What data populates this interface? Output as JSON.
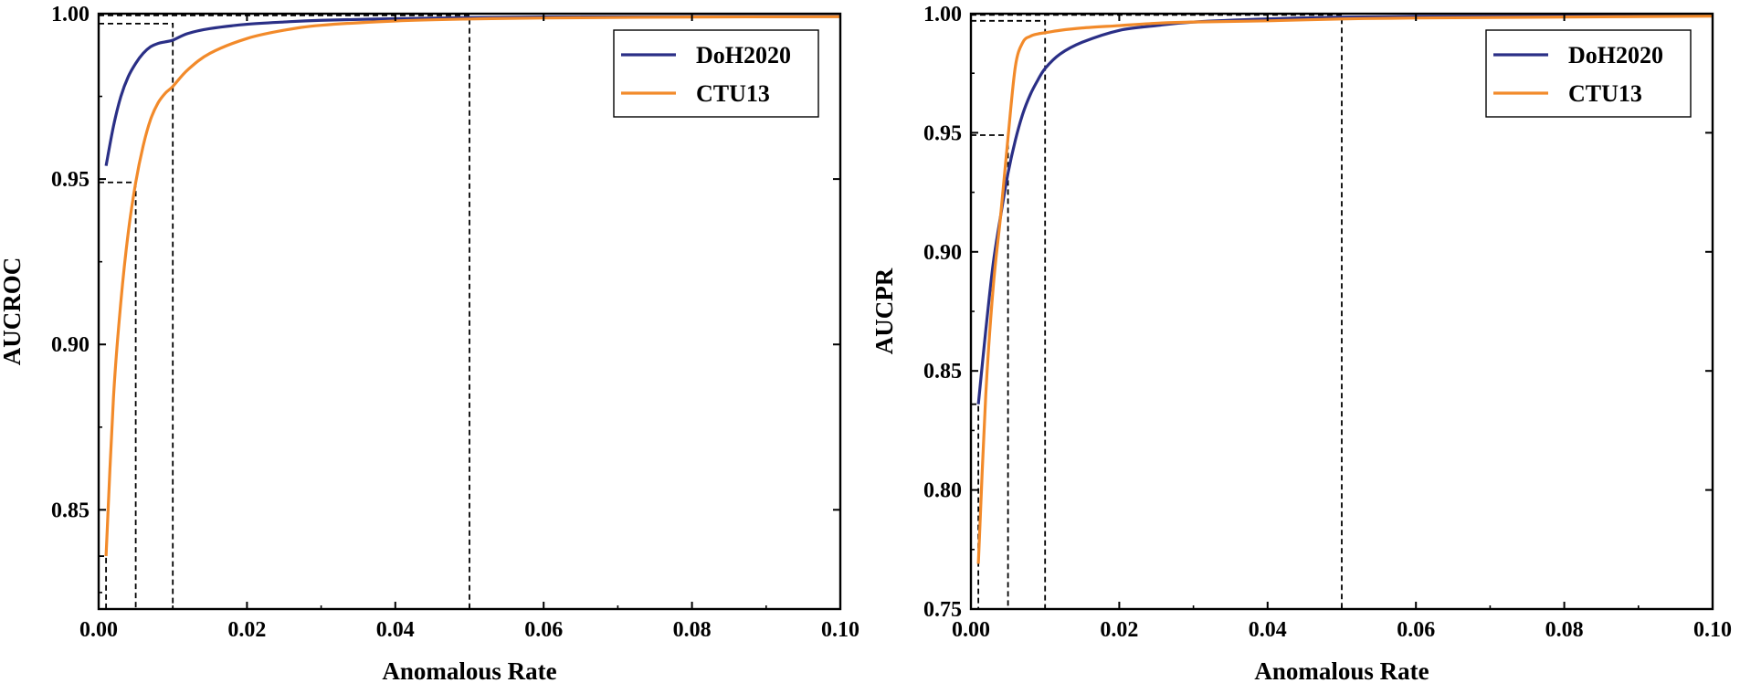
{
  "chart_data": [
    {
      "type": "line",
      "title": "",
      "xlabel": "Anomalous Rate",
      "ylabel": "AUCROC",
      "xlim": [
        0,
        0.1
      ],
      "ylim": [
        0.82,
        1.0
      ],
      "xticks": [
        0.0,
        0.02,
        0.04,
        0.06,
        0.08,
        0.1
      ],
      "xtick_labels": [
        "0.00",
        "0.02",
        "0.04",
        "0.06",
        "0.08",
        "0.10"
      ],
      "yticks": [
        0.85,
        0.9,
        0.95,
        1.0
      ],
      "ytick_labels": [
        "0.85",
        "0.90",
        "0.95",
        "1.00"
      ],
      "legend": {
        "position": "top-right",
        "entries": [
          "DoH2020",
          "CTU13"
        ]
      },
      "grid": false,
      "series": [
        {
          "name": "DoH2020",
          "color": "#2a2f86",
          "x": [
            0.001,
            0.002,
            0.003,
            0.004,
            0.005,
            0.006,
            0.007,
            0.008,
            0.009,
            0.01,
            0.012,
            0.015,
            0.02,
            0.025,
            0.03,
            0.04,
            0.05,
            0.06,
            0.08,
            0.1
          ],
          "y": [
            0.954,
            0.966,
            0.975,
            0.981,
            0.985,
            0.988,
            0.99,
            0.991,
            0.9915,
            0.992,
            0.994,
            0.9955,
            0.9968,
            0.9975,
            0.998,
            0.9985,
            0.9988,
            0.999,
            0.9991,
            0.9992
          ]
        },
        {
          "name": "CTU13",
          "color": "#f28a2a",
          "x": [
            0.001,
            0.002,
            0.003,
            0.004,
            0.005,
            0.006,
            0.007,
            0.008,
            0.009,
            0.01,
            0.012,
            0.015,
            0.02,
            0.025,
            0.03,
            0.04,
            0.05,
            0.06,
            0.08,
            0.1
          ],
          "y": [
            0.836,
            0.884,
            0.913,
            0.934,
            0.949,
            0.96,
            0.968,
            0.973,
            0.976,
            0.978,
            0.983,
            0.988,
            0.9925,
            0.995,
            0.9965,
            0.9978,
            0.9984,
            0.9987,
            0.999,
            0.9991
          ]
        }
      ],
      "reference_lines": [
        {
          "x": 0.001,
          "y": 0.836
        },
        {
          "x": 0.005,
          "y": 0.949
        },
        {
          "x": 0.01,
          "y": 0.997
        },
        {
          "x": 0.05,
          "y": 0.9995
        }
      ]
    },
    {
      "type": "line",
      "title": "",
      "xlabel": "Anomalous Rate",
      "ylabel": "AUCPR",
      "xlim": [
        0,
        0.1
      ],
      "ylim": [
        0.75,
        1.0
      ],
      "xticks": [
        0.0,
        0.02,
        0.04,
        0.06,
        0.08,
        0.1
      ],
      "xtick_labels": [
        "0.00",
        "0.02",
        "0.04",
        "0.06",
        "0.08",
        "0.10"
      ],
      "yticks": [
        0.75,
        0.8,
        0.85,
        0.9,
        0.95,
        1.0
      ],
      "ytick_labels": [
        "0.75",
        "0.80",
        "0.85",
        "0.90",
        "0.95",
        "1.00"
      ],
      "legend": {
        "position": "top-right",
        "entries": [
          "DoH2020",
          "CTU13"
        ]
      },
      "grid": false,
      "series": [
        {
          "name": "DoH2020",
          "color": "#2a2f86",
          "x": [
            0.001,
            0.002,
            0.003,
            0.004,
            0.005,
            0.006,
            0.007,
            0.008,
            0.009,
            0.01,
            0.012,
            0.015,
            0.02,
            0.025,
            0.03,
            0.04,
            0.05,
            0.06,
            0.08,
            0.1
          ],
          "y": [
            0.836,
            0.867,
            0.895,
            0.915,
            0.933,
            0.947,
            0.958,
            0.966,
            0.972,
            0.977,
            0.983,
            0.988,
            0.993,
            0.995,
            0.9965,
            0.9978,
            0.9985,
            0.9988,
            0.999,
            0.9992
          ]
        },
        {
          "name": "CTU13",
          "color": "#f28a2a",
          "x": [
            0.001,
            0.002,
            0.003,
            0.004,
            0.005,
            0.006,
            0.007,
            0.008,
            0.009,
            0.01,
            0.012,
            0.015,
            0.02,
            0.025,
            0.03,
            0.04,
            0.05,
            0.06,
            0.08,
            0.1
          ],
          "y": [
            0.769,
            0.84,
            0.885,
            0.915,
            0.948,
            0.978,
            0.988,
            0.9905,
            0.9915,
            0.992,
            0.993,
            0.994,
            0.995,
            0.996,
            0.9965,
            0.997,
            0.9978,
            0.9982,
            0.9986,
            0.999
          ]
        }
      ],
      "reference_lines": [
        {
          "x": 0.001,
          "y": 0.836
        },
        {
          "x": 0.005,
          "y": 0.949
        },
        {
          "x": 0.01,
          "y": 0.997
        },
        {
          "x": 0.05,
          "y": 0.9995
        }
      ]
    }
  ]
}
